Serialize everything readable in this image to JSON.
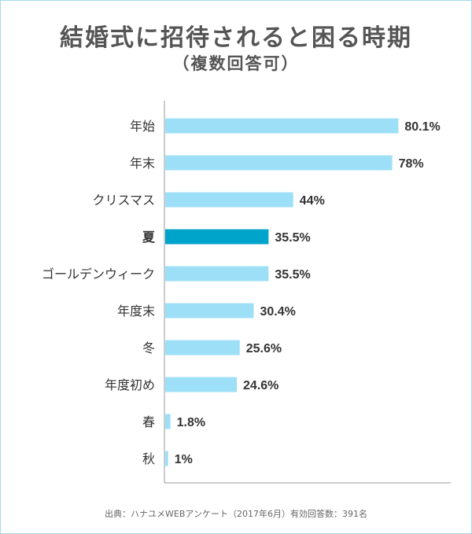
{
  "chart_data": {
    "type": "bar",
    "orientation": "horizontal",
    "title": "結婚式に招待されると困る時期",
    "subtitle": "（複数回答可）",
    "categories": [
      "年始",
      "年末",
      "クリスマス",
      "夏",
      "ゴールデンウィーク",
      "年度末",
      "冬",
      "年度初め",
      "春",
      "秋"
    ],
    "values": [
      80.1,
      78,
      44,
      35.5,
      35.5,
      30.4,
      25.6,
      24.6,
      1.8,
      1
    ],
    "value_labels": [
      "80.1%",
      "78%",
      "44%",
      "35.5%",
      "35.5%",
      "30.4%",
      "25.6%",
      "24.6%",
      "1.8%",
      "1%"
    ],
    "highlight_category": "夏",
    "xlim": [
      0,
      100
    ],
    "grid": false,
    "legend": "none",
    "bar_color": "#9ddff7",
    "highlight_color": "#00a3c9",
    "text_color": "#333333",
    "axis_color": "#999999"
  },
  "source": "出典：ハナユメWEBアンケート（2017年6月）有効回答数：391名"
}
